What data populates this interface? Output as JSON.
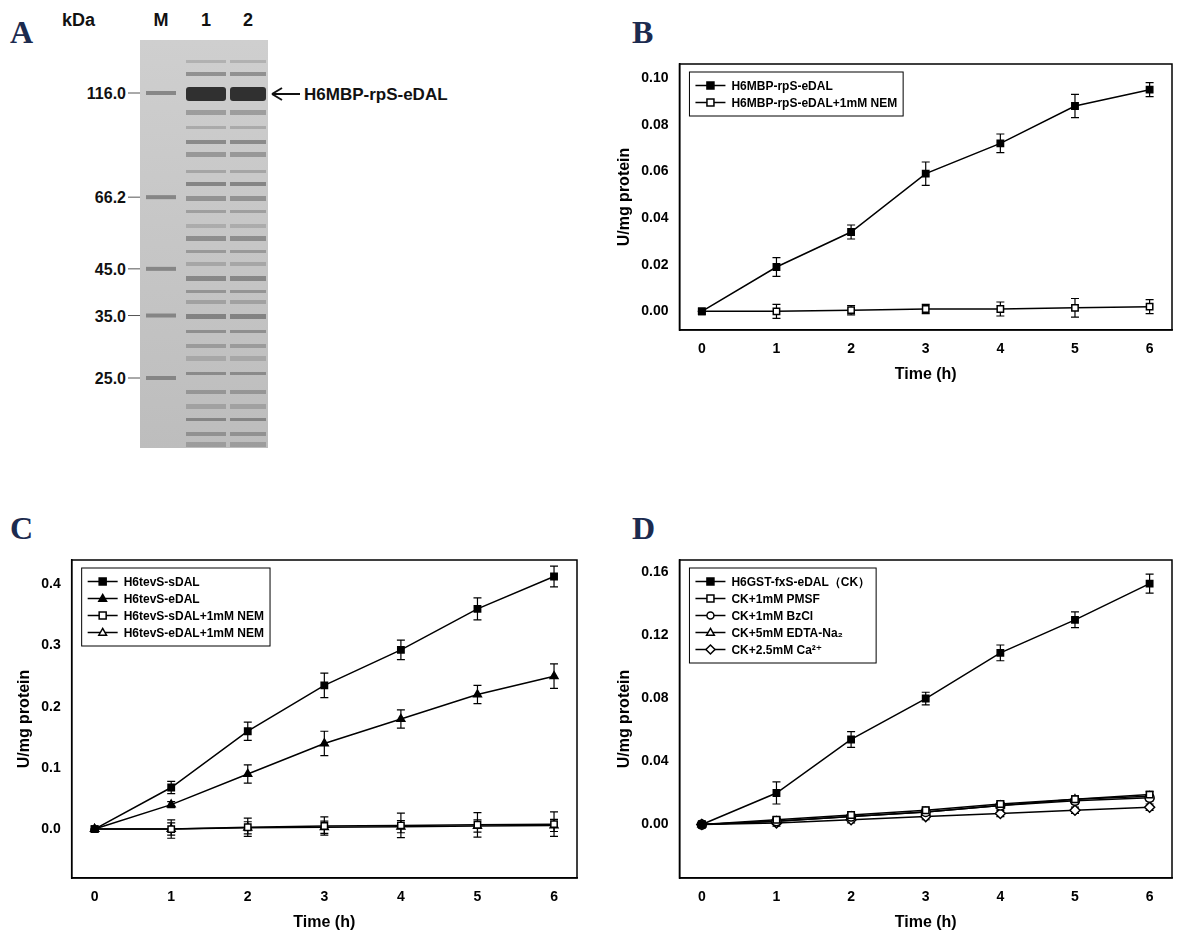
{
  "chart_data": [
    {
      "type": "line",
      "title": "B",
      "xlabel": "Time (h)",
      "ylabel": "U/mg protein",
      "x": [
        0,
        1,
        2,
        3,
        4,
        5,
        6
      ],
      "xlim": [
        -0.3,
        6.3
      ],
      "xticks": [
        0,
        1,
        2,
        3,
        4,
        5,
        6
      ],
      "ylim": [
        -0.008,
        0.106
      ],
      "yticks": [
        {
          "value": 0,
          "label": "0.00"
        },
        {
          "value": 0.02,
          "label": "0.02"
        },
        {
          "value": 0.04,
          "label": "0.04"
        },
        {
          "value": 0.06,
          "label": "0.06"
        },
        {
          "value": 0.08,
          "label": "0.08"
        },
        {
          "value": 0.1,
          "label": "0.10"
        }
      ],
      "grid": false,
      "legend": "upper left",
      "series": [
        {
          "name": "H6MBP-rpS-eDAL",
          "color": "#000000",
          "marker": "square",
          "line_style": "solid",
          "values": [
            0,
            0.019,
            0.034,
            0.059,
            0.072,
            0.088,
            0.095
          ],
          "errors": [
            0,
            0.004,
            0.003,
            0.005,
            0.004,
            0.005,
            0.003
          ]
        },
        {
          "name": "H6MBP-rpS-eDAL+1mM NEM",
          "color": "#000000",
          "marker": "square_open",
          "line_style": "solid",
          "values": [
            0,
            0,
            0.0005,
            0.001,
            0.001,
            0.0015,
            0.002
          ],
          "errors": [
            0,
            0.003,
            0.002,
            0.002,
            0.003,
            0.004,
            0.003
          ]
        }
      ]
    },
    {
      "type": "line",
      "title": "C",
      "xlabel": "Time (h)",
      "ylabel": "U/mg protein",
      "x": [
        0,
        1,
        2,
        3,
        4,
        5,
        6
      ],
      "xlim": [
        -0.3,
        6.3
      ],
      "xticks": [
        0,
        1,
        2,
        3,
        4,
        5,
        6
      ],
      "ylim": [
        -0.08,
        0.44
      ],
      "yticks": [
        {
          "value": 0,
          "label": "0.0"
        },
        0.1,
        0.2,
        0.3,
        0.4
      ],
      "grid": false,
      "legend": "upper left",
      "series": [
        {
          "name": "H6tevS-sDAL",
          "color": "#000000",
          "marker": "square",
          "line_style": "solid",
          "values": [
            0,
            0.068,
            0.16,
            0.235,
            0.293,
            0.36,
            0.413
          ],
          "errors": [
            0,
            0.01,
            0.015,
            0.02,
            0.016,
            0.018,
            0.017
          ]
        },
        {
          "name": "H6tevS-eDAL",
          "color": "#000000",
          "marker": "triangle",
          "line_style": "solid",
          "values": [
            0,
            0.04,
            0.09,
            0.14,
            0.18,
            0.22,
            0.25
          ],
          "errors": [
            0,
            0.005,
            0.015,
            0.02,
            0.015,
            0.015,
            0.02
          ]
        },
        {
          "name": "H6tevS-sDAL+1mM NEM",
          "color": "#000000",
          "marker": "square_open",
          "line_style": "solid",
          "values": [
            0,
            0,
            0.003,
            0.005,
            0.006,
            0.007,
            0.008
          ],
          "errors": [
            0,
            0.015,
            0.015,
            0.015,
            0.02,
            0.02,
            0.02
          ]
        },
        {
          "name": "H6tevS-eDAL+1mM NEM",
          "color": "#000000",
          "marker": "triangle_open",
          "line_style": "solid",
          "values": [
            0,
            0,
            0.002,
            0.003,
            0.004,
            0.005,
            0.006
          ],
          "errors": [
            0,
            0.01,
            0.01,
            0.01,
            0.01,
            0.01,
            0.01
          ]
        }
      ]
    },
    {
      "type": "line",
      "title": "D",
      "xlabel": "Time (h)",
      "ylabel": "U/mg protein",
      "x": [
        0,
        1,
        2,
        3,
        4,
        5,
        6
      ],
      "xlim": [
        -0.3,
        6.3
      ],
      "xticks": [
        0,
        1,
        2,
        3,
        4,
        5,
        6
      ],
      "ylim": [
        -0.034,
        0.168
      ],
      "yticks": [
        {
          "value": 0,
          "label": "0.00"
        },
        0.04,
        0.08,
        0.12,
        0.16
      ],
      "grid": false,
      "legend": "upper left",
      "series": [
        {
          "name": "H6GST-fxS-eDAL（CK）",
          "color": "#000000",
          "marker": "square",
          "line_style": "solid",
          "values": [
            0,
            0.02,
            0.054,
            0.08,
            0.109,
            0.13,
            0.153
          ],
          "errors": [
            0,
            0.007,
            0.005,
            0.004,
            0.005,
            0.005,
            0.006
          ]
        },
        {
          "name": "CK+1mM PMSF",
          "color": "#000000",
          "marker": "square_open",
          "line_style": "solid",
          "values": [
            0,
            0.003,
            0.006,
            0.009,
            0.013,
            0.016,
            0.019
          ],
          "errors": [
            0,
            0.002,
            0.002,
            0.002,
            0.002,
            0.002,
            0.002
          ]
        },
        {
          "name": "CK+1mM BzCl",
          "color": "#000000",
          "marker": "circle_open",
          "line_style": "solid",
          "values": [
            0,
            0.002,
            0.005,
            0.008,
            0.012,
            0.015,
            0.017
          ],
          "errors": [
            0,
            0.002,
            0.002,
            0.002,
            0.002,
            0.002,
            0.002
          ]
        },
        {
          "name": "CK+5mM EDTA-Na₂",
          "color": "#000000",
          "marker": "triangle_open",
          "line_style": "solid",
          "values": [
            0,
            0.002,
            0.005,
            0.008,
            0.012,
            0.016,
            0.018
          ],
          "errors": [
            0,
            0.002,
            0.002,
            0.002,
            0.002,
            0.002,
            0.002
          ]
        },
        {
          "name": "CK+2.5mM Ca²⁺",
          "color": "#000000",
          "marker": "diamond_open",
          "line_style": "solid",
          "values": [
            0,
            0.001,
            0.003,
            0.005,
            0.007,
            0.009,
            0.011
          ],
          "errors": [
            0,
            0.002,
            0.002,
            0.002,
            0.002,
            0.002,
            0.002
          ]
        }
      ]
    }
  ],
  "gel": {
    "title": "A",
    "unit": "kDa",
    "lanes": [
      "M",
      "1",
      "2"
    ],
    "markers": [
      {
        "value": 116,
        "label": "116.0"
      },
      {
        "value": 66.2,
        "label": "66.2"
      },
      {
        "value": 45,
        "label": "45.0"
      },
      {
        "value": 35,
        "label": "35.0"
      },
      {
        "value": 25,
        "label": "25.0"
      }
    ],
    "band_label": "H6MBP-rpS-eDAL"
  }
}
